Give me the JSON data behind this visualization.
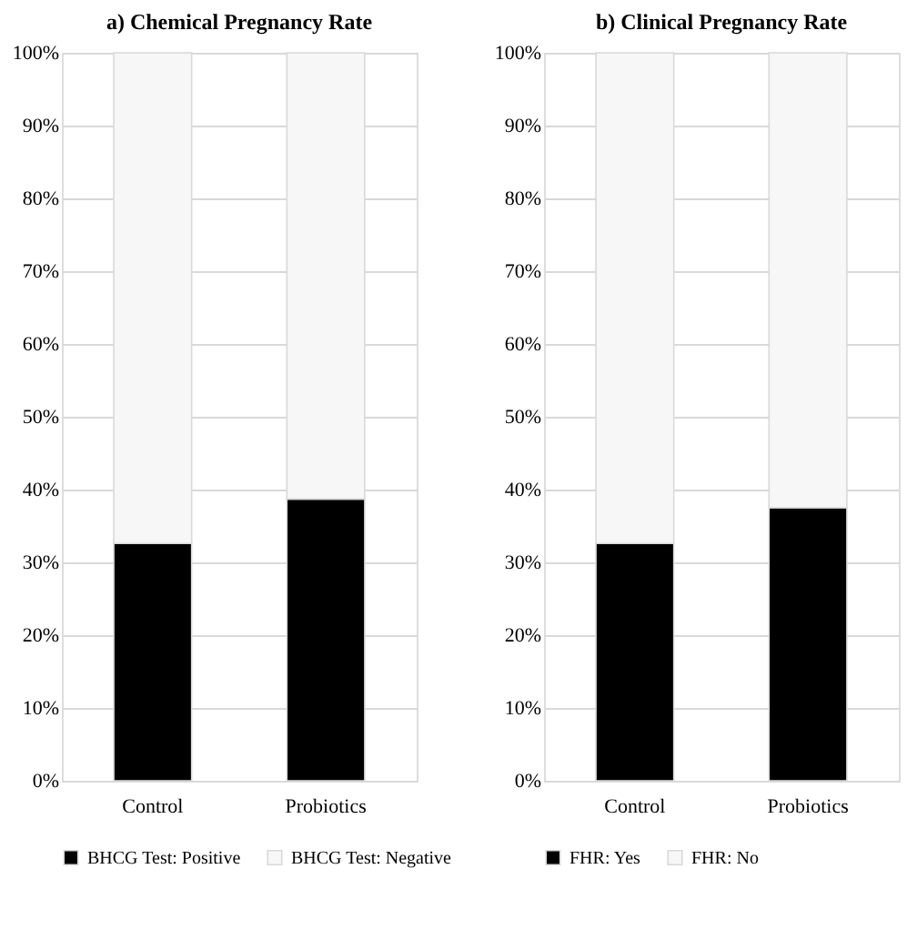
{
  "chart_data": [
    {
      "type": "bar",
      "title": "a) Chemical Pregnancy Rate",
      "categories": [
        "Control",
        "Probiotics"
      ],
      "stacked": true,
      "series": [
        {
          "name": "BHCG Test: Positive",
          "color": "#000000",
          "values": [
            32.6,
            38.7
          ]
        },
        {
          "name": "BHCG Test: Negative",
          "color": "#f7f7f7",
          "values": [
            67.4,
            61.3
          ]
        }
      ],
      "ylim": [
        0,
        100
      ],
      "yticks": [
        {
          "value": 0,
          "label": "0%"
        },
        {
          "value": 10,
          "label": "10%"
        },
        {
          "value": 20,
          "label": "20%"
        },
        {
          "value": 30,
          "label": "30%"
        },
        {
          "value": 40,
          "label": "40%"
        },
        {
          "value": 50,
          "label": "50%"
        },
        {
          "value": 60,
          "label": "60%"
        },
        {
          "value": 70,
          "label": "70%"
        },
        {
          "value": 80,
          "label": "80%"
        },
        {
          "value": 90,
          "label": "90%"
        },
        {
          "value": 100,
          "label": "100%"
        }
      ],
      "grid": "y",
      "legend": "bottom"
    },
    {
      "type": "bar",
      "title": "b) Clinical Pregnancy Rate",
      "categories": [
        "Control",
        "Probiotics"
      ],
      "stacked": true,
      "series": [
        {
          "name": "FHR: Yes",
          "color": "#000000",
          "values": [
            32.6,
            37.5
          ]
        },
        {
          "name": "FHR: No",
          "color": "#f7f7f7",
          "values": [
            67.4,
            62.5
          ]
        }
      ],
      "ylim": [
        0,
        100
      ],
      "yticks": [
        {
          "value": 0,
          "label": "0%"
        },
        {
          "value": 10,
          "label": "10%"
        },
        {
          "value": 20,
          "label": "20%"
        },
        {
          "value": 30,
          "label": "30%"
        },
        {
          "value": 40,
          "label": "40%"
        },
        {
          "value": 50,
          "label": "50%"
        },
        {
          "value": 60,
          "label": "60%"
        },
        {
          "value": 70,
          "label": "70%"
        },
        {
          "value": 80,
          "label": "80%"
        },
        {
          "value": 90,
          "label": "90%"
        },
        {
          "value": 100,
          "label": "100%"
        }
      ],
      "grid": "y",
      "legend": "bottom"
    }
  ]
}
